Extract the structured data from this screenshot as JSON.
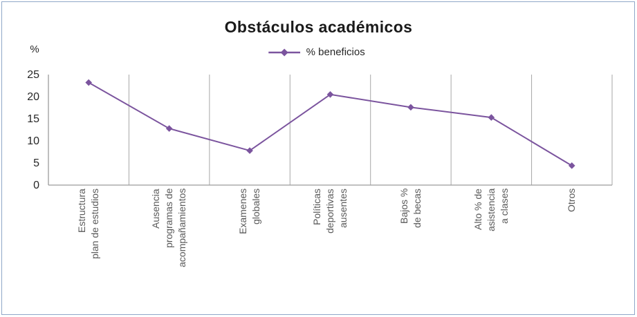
{
  "chart_data": {
    "type": "line",
    "title": "Obstáculos académicos",
    "legend": "% beneficios",
    "y_axis_unit": "%",
    "ylim": [
      0,
      25
    ],
    "yticks": [
      25,
      20,
      15,
      10,
      5,
      0
    ],
    "grid": "vertical-only",
    "legend_position": "top-center",
    "categories": [
      "Estructura\nplan de estudios",
      "Ausencia\nprogramas de\nacompañamientos",
      "Examenes\nglobales",
      "Políticas\ndeportivas\nausentes",
      "Bajos %\nde becas",
      "Alto % de\nasistencia\na clases",
      "Otros"
    ],
    "values": [
      23.2,
      12.8,
      7.8,
      20.5,
      17.6,
      15.3,
      4.4
    ],
    "marker": "diamond"
  },
  "colors": {
    "series": "#7b549e",
    "gridline": "#a6a6a6",
    "axis": "#9b9b9b",
    "tick_label": "#262626",
    "category_label": "#595959",
    "title": "#1a1a1a",
    "frame_border": "#8ea6c8"
  }
}
